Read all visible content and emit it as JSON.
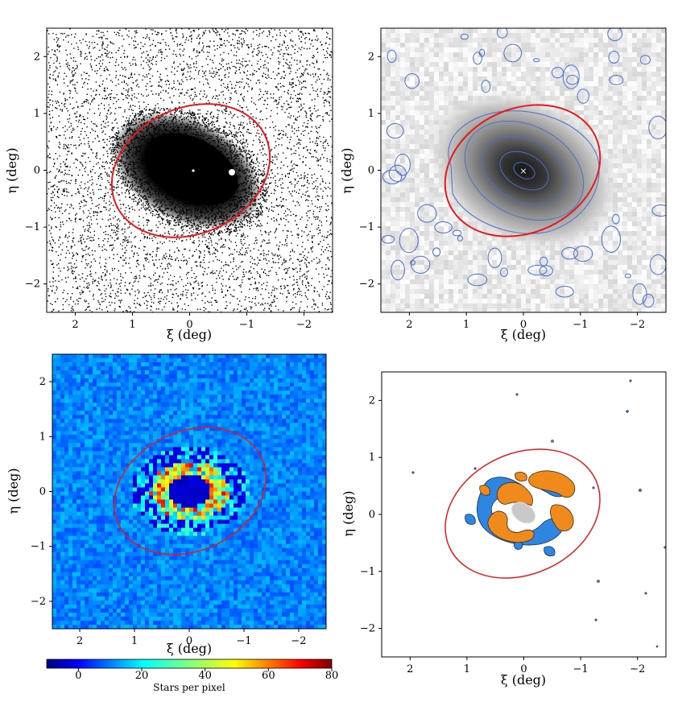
{
  "figure": {
    "panels": [
      {
        "id": "star-map",
        "kind": "scatter",
        "xlabel": "ξ (deg)",
        "ylabel": "η (deg)",
        "xticks": [
          "2",
          "1",
          "0",
          "−1",
          "−2"
        ],
        "yticks": [
          "2",
          "1",
          "0",
          "−1",
          "−2"
        ]
      },
      {
        "id": "density-contour",
        "kind": "density",
        "xlabel": "ξ (deg)",
        "ylabel": "η (deg)",
        "xticks": [
          "2",
          "1",
          "0",
          "−1",
          "−2"
        ],
        "yticks": [
          "2",
          "1",
          "0",
          "−1",
          "−2"
        ]
      },
      {
        "id": "heatmap",
        "kind": "heatmap",
        "xlabel": "ξ (deg)",
        "ylabel": "η (deg)",
        "xticks": [
          "2",
          "1",
          "0",
          "−1",
          "−2"
        ],
        "yticks": [
          "2",
          "1",
          "0",
          "−1",
          "−2"
        ]
      },
      {
        "id": "residual-contour",
        "kind": "contour",
        "xlabel": "ξ (deg)",
        "ylabel": "η (deg)",
        "xticks": [
          "2",
          "1",
          "0",
          "−1",
          "−2"
        ],
        "yticks": [
          "2",
          "1",
          "0",
          "−1",
          "−2"
        ]
      }
    ],
    "colorbar": {
      "label": "Stars per pixel",
      "ticks": [
        "0",
        "20",
        "40",
        "60",
        "80"
      ],
      "min": -10,
      "max": 80,
      "colormap": "jet"
    },
    "colors": {
      "ellipse": "#e8191c",
      "contour": "#4a6fd0",
      "heatmap_background": "#1b3ee0",
      "overdensity": "#f08a1c",
      "underdensity": "#2f86e0",
      "core": "#c8c8c8"
    }
  },
  "chart_data": [
    {
      "type": "scatter",
      "title": "",
      "xlabel": "ξ (deg)",
      "ylabel": "η (deg)",
      "xlim": [
        2.5,
        -2.5
      ],
      "ylim": [
        -2.5,
        2.5
      ],
      "ellipse": {
        "center": [
          0.0,
          0.0
        ],
        "semi_major_deg": 1.4,
        "semi_minor_deg": 1.1,
        "position_angle_deg": 60
      },
      "overdensity_center": [
        0.0,
        0.0
      ]
    },
    {
      "type": "heatmap",
      "title": "",
      "xlabel": "ξ (deg)",
      "ylabel": "η (deg)",
      "xlim": [
        2.5,
        -2.5
      ],
      "ylim": [
        -2.5,
        2.5
      ],
      "contour_levels": 5,
      "center_marker": [
        0.0,
        0.0
      ]
    },
    {
      "type": "heatmap",
      "title": "",
      "xlabel": "ξ (deg)",
      "ylabel": "η (deg)",
      "xlim": [
        2.5,
        -2.5
      ],
      "ylim": [
        -2.5,
        2.5
      ],
      "colorbar": {
        "label": "Stars per pixel",
        "range": [
          -10,
          80
        ]
      }
    },
    {
      "type": "heatmap",
      "title": "",
      "xlabel": "ξ (deg)",
      "ylabel": "η (deg)",
      "xlim": [
        2.5,
        -2.5
      ],
      "ylim": [
        -2.5,
        2.5
      ]
    }
  ]
}
